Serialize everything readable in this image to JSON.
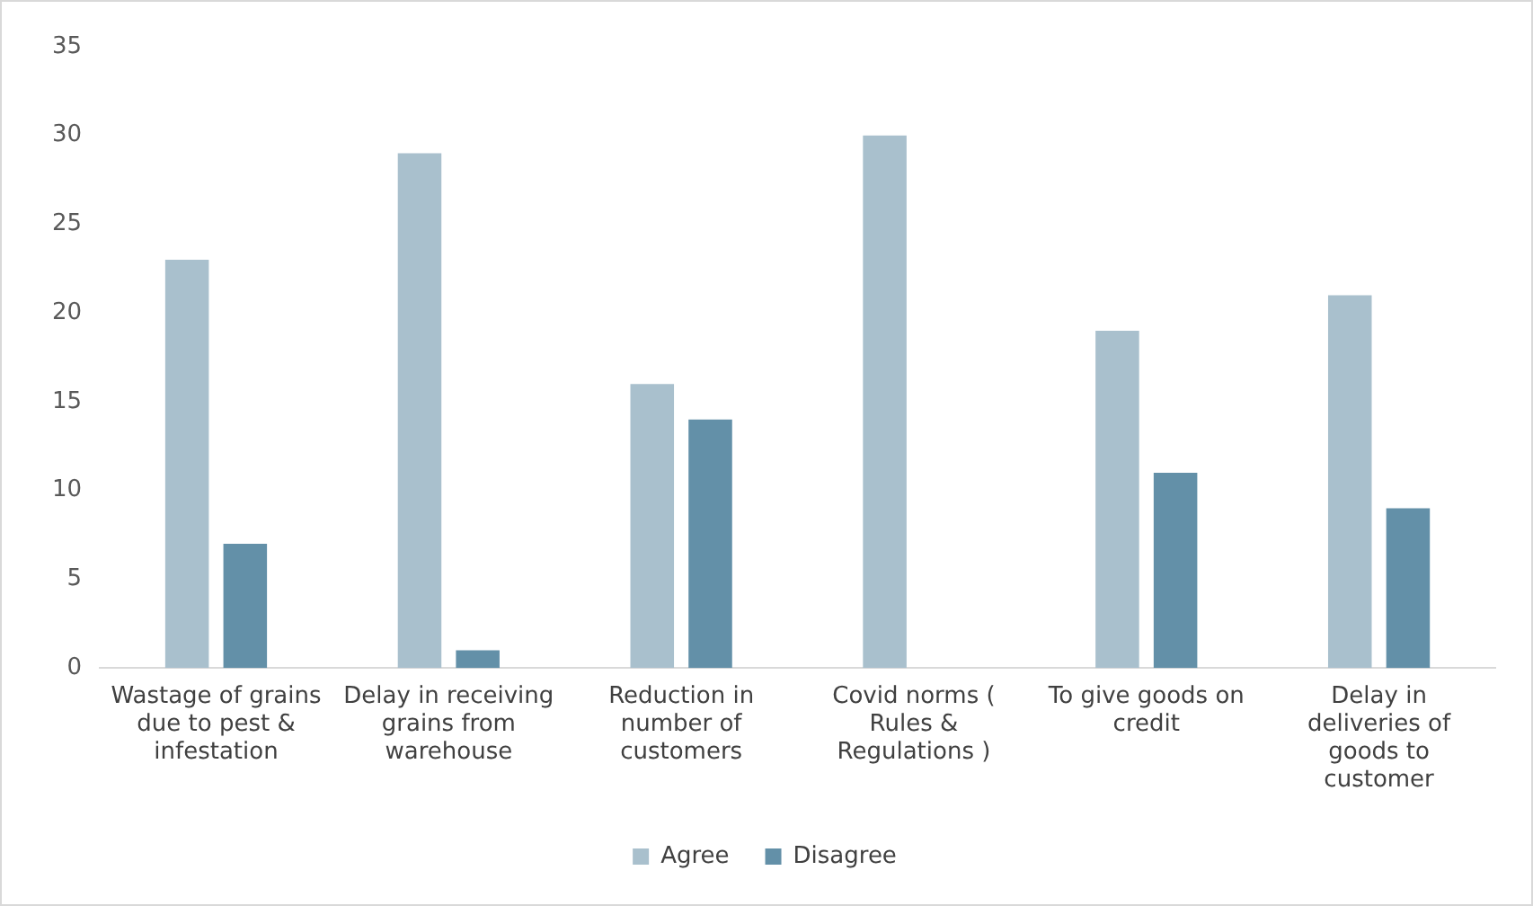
{
  "chart_data": {
    "type": "bar",
    "categories": [
      "Wastage of grains due to pest & infestation",
      "Delay in receiving grains from warehouse",
      "Reduction in number of customers",
      "Covid norms ( Rules & Regulations )",
      "To give goods on credit",
      "Delay in deliveries of goods to customer"
    ],
    "series": [
      {
        "name": "Agree",
        "color": "#a9c0cd",
        "values": [
          23,
          29,
          16,
          30,
          19,
          21
        ]
      },
      {
        "name": "Disagree",
        "color": "#6390a8",
        "values": [
          7,
          1,
          14,
          0,
          11,
          9
        ]
      }
    ],
    "ylim": [
      0,
      35
    ],
    "yticks": [
      0,
      5,
      10,
      15,
      20,
      25,
      30,
      35
    ],
    "grid": false,
    "legend": "bottom"
  }
}
